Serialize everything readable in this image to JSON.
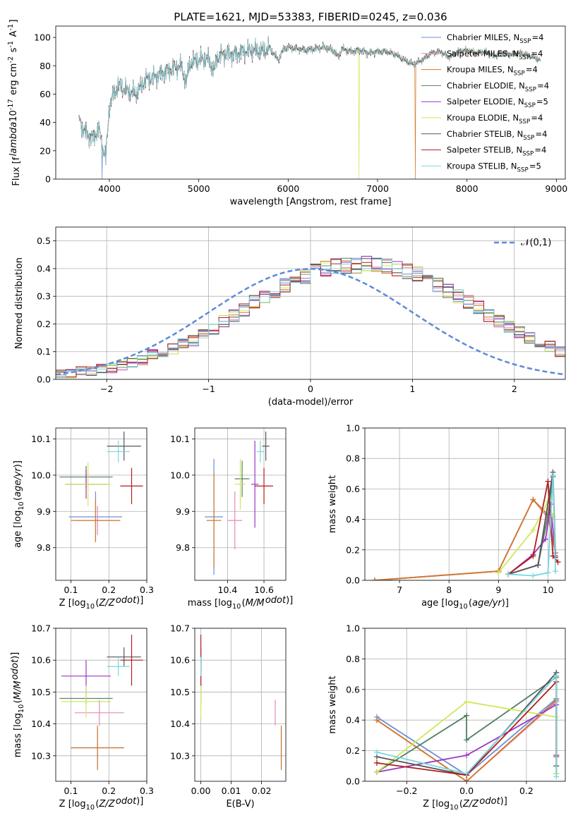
{
  "title": "PLATE=1621, MJD=53383, FIBERID=0245, z=0.036",
  "series": [
    {
      "name": "Chabrier MILES, N$_{SSP}$=4",
      "label": "Chabrier MILES",
      "nssp": "4",
      "color": "#6a8fd8"
    },
    {
      "name": "Salpeter MILES, N$_{SSP}$=4",
      "label": "Salpeter MILES",
      "nssp": "4",
      "color": "#e58ab8"
    },
    {
      "name": "Kroupa MILES, N$_{SSP}$=4",
      "label": "Kroupa MILES",
      "nssp": "4",
      "color": "#d2782a"
    },
    {
      "name": "Chabrier ELODIE, N$_{SSP}$=4",
      "label": "Chabrier ELODIE",
      "nssp": "4",
      "color": "#4f7f5f"
    },
    {
      "name": "Salpeter ELODIE, N$_{SSP}$=5",
      "label": "Salpeter ELODIE",
      "nssp": "5",
      "color": "#9b35c5"
    },
    {
      "name": "Kroupa ELODIE, N$_{SSP}$=4",
      "label": "Kroupa ELODIE",
      "nssp": "4",
      "color": "#cfe85a"
    },
    {
      "name": "Chabrier STELIB, N$_{SSP}$=4",
      "label": "Chabrier STELIB",
      "nssp": "4",
      "color": "#555555"
    },
    {
      "name": "Salpeter STELIB, N$_{SSP}$=4",
      "label": "Salpeter STELIB",
      "nssp": "4",
      "color": "#b51c1c"
    },
    {
      "name": "Kroupa STELIB, N$_{SSP}$=5",
      "label": "Kroupa STELIB",
      "nssp": "5",
      "color": "#79d6e0"
    }
  ],
  "chart_data": [
    {
      "id": "spectrum",
      "type": "line",
      "title": "PLATE=1621, MJD=53383, FIBERID=0245, z=0.036",
      "xlabel": "wavelength [Angstrom, rest frame]",
      "ylabel": "Flux [f$_\\lambda$10$^{-17}$ erg cm$^{-2}$ s$^{-1}$ A$^{-1}$]",
      "xlim": [
        3400,
        9100
      ],
      "ylim": [
        0,
        108
      ],
      "xticks": [
        4000,
        5000,
        6000,
        7000,
        8000,
        9000
      ],
      "yticks": [
        0,
        20,
        40,
        60,
        80,
        100
      ],
      "legend": "top-right",
      "spectrum": {
        "x": [
          3660,
          3700,
          3760,
          3820,
          3880,
          3920,
          3960,
          4000,
          4050,
          4100,
          4200,
          4300,
          4400,
          4500,
          4600,
          4700,
          4800,
          4860,
          4900,
          5000,
          5100,
          5175,
          5200,
          5300,
          5400,
          5500,
          5600,
          5700,
          5800,
          5890,
          5950,
          6000,
          6100,
          6200,
          6300,
          6400,
          6500,
          6563,
          6600,
          6700,
          6800,
          6900,
          7000,
          7100,
          7200,
          7300,
          7400,
          7500,
          7600,
          7700,
          7800,
          7900,
          8000,
          8100,
          8200,
          8300,
          8400,
          8500,
          8600,
          8700,
          8820
        ],
        "y": [
          43,
          36,
          31,
          29,
          36,
          24,
          15,
          52,
          60,
          66,
          62,
          60,
          70,
          72,
          75,
          78,
          80,
          68,
          82,
          84,
          85,
          76,
          86,
          89,
          88,
          90,
          91,
          90,
          92,
          84,
          92,
          93,
          92,
          91,
          92,
          93,
          91,
          86,
          92,
          90,
          91,
          89,
          90,
          90,
          88,
          84,
          81,
          84,
          89,
          90,
          86,
          90,
          91,
          89,
          90,
          87,
          89,
          88,
          89,
          87,
          84
        ]
      },
      "dropouts": [
        {
          "series": "Chabrier MILES, N$_{SSP}$=4",
          "x": 3920
        },
        {
          "series": "Kroupa ELODIE, N$_{SSP}$=4",
          "x": 6790
        },
        {
          "series": "Kroupa MILES, N$_{SSP}$=4",
          "x": 7420
        }
      ]
    },
    {
      "id": "residuals",
      "type": "bar",
      "xlabel": "(data-model)/error",
      "ylabel": "Normed distribution",
      "xlim": [
        -2.5,
        2.5
      ],
      "ylim": [
        0,
        0.55
      ],
      "xticks": [
        -2,
        -1,
        0,
        1,
        2
      ],
      "yticks": [
        0.0,
        0.1,
        0.2,
        0.3,
        0.4,
        0.5
      ],
      "legend_entry": "$\\mathcal{N}(0,1)$",
      "legend": "top-right",
      "bin_width": 0.1,
      "bin_start": -2.5,
      "base_density": [
        0.02,
        0.02,
        0.03,
        0.03,
        0.04,
        0.04,
        0.05,
        0.06,
        0.07,
        0.09,
        0.1,
        0.11,
        0.13,
        0.14,
        0.16,
        0.18,
        0.21,
        0.23,
        0.25,
        0.28,
        0.3,
        0.32,
        0.34,
        0.36,
        0.37,
        0.39,
        0.4,
        0.41,
        0.41,
        0.41,
        0.42,
        0.41,
        0.41,
        0.4,
        0.39,
        0.38,
        0.36,
        0.34,
        0.32,
        0.3,
        0.28,
        0.26,
        0.23,
        0.21,
        0.19,
        0.17,
        0.15,
        0.13,
        0.12,
        0.1
      ],
      "normal_curve": {
        "mean": 0,
        "sigma": 1
      }
    },
    {
      "id": "age-vs-Z",
      "type": "scatter",
      "xlabel": "Z [log$_{10}$($Z/Z_\\odot$)]",
      "ylabel": "age  [log$_{10}$($age/yr$)]",
      "xlim": [
        0.06,
        0.3
      ],
      "ylim": [
        9.71,
        10.13
      ],
      "xticks": [
        0.1,
        0.2,
        0.3
      ],
      "yticks": [
        9.8,
        9.9,
        10.0,
        10.1
      ],
      "points": [
        {
          "x": 0.165,
          "y": 9.885,
          "xerr": 0.07,
          "yerr": 0.07
        },
        {
          "x": 0.17,
          "y": 9.875,
          "xerr": 0.06,
          "yerr": 0.04
        },
        {
          "x": 0.165,
          "y": 9.875,
          "xerr": 0.065,
          "yerr": 0.06
        },
        {
          "x": 0.14,
          "y": 9.995,
          "xerr": 0.07,
          "yerr": 0.03
        },
        {
          "x": 0.14,
          "y": 9.975,
          "xerr": 0.055,
          "yerr": 0.04
        },
        {
          "x": 0.145,
          "y": 9.975,
          "xerr": 0.06,
          "yerr": 0.06
        },
        {
          "x": 0.24,
          "y": 10.08,
          "xerr": 0.045,
          "yerr": 0.04
        },
        {
          "x": 0.26,
          "y": 9.97,
          "xerr": 0.03,
          "yerr": 0.05
        },
        {
          "x": 0.225,
          "y": 10.065,
          "xerr": 0.03,
          "yerr": 0.03
        }
      ]
    },
    {
      "id": "age-vs-mass",
      "type": "scatter",
      "xlabel": "mass [log$_{10}$($M/M_\\odot$)]",
      "ylabel": "",
      "xlim": [
        10.22,
        10.72
      ],
      "ylim": [
        9.71,
        10.13
      ],
      "xticks": [
        10.4,
        10.6
      ],
      "yticks": [
        9.8,
        9.9,
        10.0,
        10.1
      ],
      "points": [
        {
          "x": 10.325,
          "y": 9.885,
          "xerr": 0.05,
          "yerr": 0.16
        },
        {
          "x": 10.44,
          "y": 9.875,
          "xerr": 0.04,
          "yerr": 0.08
        },
        {
          "x": 10.325,
          "y": 9.875,
          "xerr": 0.04,
          "yerr": 0.13
        },
        {
          "x": 10.48,
          "y": 9.99,
          "xerr": 0.04,
          "yerr": 0.05
        },
        {
          "x": 10.55,
          "y": 9.975,
          "xerr": 0.02,
          "yerr": 0.12
        },
        {
          "x": 10.47,
          "y": 9.975,
          "xerr": 0.03,
          "yerr": 0.07
        },
        {
          "x": 10.61,
          "y": 10.08,
          "xerr": 0.02,
          "yerr": 0.04
        },
        {
          "x": 10.6,
          "y": 9.97,
          "xerr": 0.05,
          "yerr": 0.05
        },
        {
          "x": 10.58,
          "y": 10.065,
          "xerr": 0.02,
          "yerr": 0.03
        }
      ]
    },
    {
      "id": "weight-vs-age",
      "type": "line",
      "xlabel": "age  [log$_{10}$($age/yr$)]",
      "ylabel": "mass weight",
      "xlim": [
        6.3,
        10.35
      ],
      "ylim": [
        0,
        1
      ],
      "xticks": [
        7,
        8,
        9,
        10
      ],
      "yticks": [
        0.0,
        0.2,
        0.4,
        0.6,
        0.8,
        1.0
      ],
      "lines": [
        {
          "x": [
            6.5,
            9.0,
            9.7,
            10.0,
            10.15
          ],
          "y": [
            0.0,
            0.06,
            0.53,
            0.41,
            0.18
          ]
        },
        {
          "x": [
            6.5,
            9.0,
            9.7,
            10.0,
            10.15
          ],
          "y": [
            0.0,
            0.06,
            0.53,
            0.41,
            0.18
          ]
        },
        {
          "x": [
            6.5,
            9.0,
            9.7,
            10.0,
            10.15
          ],
          "y": [
            0.0,
            0.06,
            0.53,
            0.43,
            0.18
          ]
        },
        {
          "x": [
            9.2,
            9.8,
            10.0,
            10.1
          ],
          "y": [
            0.04,
            0.1,
            0.43,
            0.68
          ]
        },
        {
          "x": [
            9.2,
            9.7,
            9.95,
            10.05,
            10.15
          ],
          "y": [
            0.04,
            0.17,
            0.27,
            0.5,
            0.16
          ]
        },
        {
          "x": [
            9.0,
            9.7,
            10.0,
            10.1
          ],
          "y": [
            0.05,
            0.33,
            0.52,
            0.42
          ]
        },
        {
          "x": [
            9.2,
            9.8,
            10.1,
            10.15
          ],
          "y": [
            0.04,
            0.1,
            0.71,
            0.15
          ]
        },
        {
          "x": [
            9.2,
            9.7,
            10.0,
            10.1,
            10.2
          ],
          "y": [
            0.04,
            0.16,
            0.65,
            0.16,
            0.12
          ]
        },
        {
          "x": [
            9.2,
            9.7,
            10.0,
            10.1,
            10.15
          ],
          "y": [
            0.04,
            0.03,
            0.05,
            0.69,
            0.06
          ]
        }
      ]
    },
    {
      "id": "mass-vs-Z",
      "type": "scatter",
      "xlabel": "Z [log$_{10}$($Z/Z_\\odot$)]",
      "ylabel": "mass [log$_{10}$($M/M_\\odot$)]",
      "xlim": [
        0.06,
        0.3
      ],
      "ylim": [
        10.22,
        10.7
      ],
      "xticks": [
        0.1,
        0.2,
        0.3
      ],
      "yticks": [
        10.3,
        10.4,
        10.5,
        10.6,
        10.7
      ],
      "points": [
        {
          "x": 0.17,
          "y": 10.325,
          "xerr": 0.07,
          "yerr": 0.06
        },
        {
          "x": 0.175,
          "y": 10.435,
          "xerr": 0.065,
          "yerr": 0.04
        },
        {
          "x": 0.17,
          "y": 10.325,
          "xerr": 0.07,
          "yerr": 0.07
        },
        {
          "x": 0.14,
          "y": 10.48,
          "xerr": 0.07,
          "yerr": 0.02
        },
        {
          "x": 0.14,
          "y": 10.55,
          "xerr": 0.065,
          "yerr": 0.05
        },
        {
          "x": 0.14,
          "y": 10.47,
          "xerr": 0.065,
          "yerr": 0.05
        },
        {
          "x": 0.24,
          "y": 10.61,
          "xerr": 0.045,
          "yerr": 0.03
        },
        {
          "x": 0.26,
          "y": 10.6,
          "xerr": 0.03,
          "yerr": 0.08
        },
        {
          "x": 0.225,
          "y": 10.58,
          "xerr": 0.03,
          "yerr": 0.03
        }
      ]
    },
    {
      "id": "mass-vs-ebv",
      "type": "scatter",
      "xlabel": "E(B-V)",
      "ylabel": "",
      "xlim": [
        -0.002,
        0.028
      ],
      "ylim": [
        10.22,
        10.7
      ],
      "xticks": [
        0.0,
        0.01,
        0.02
      ],
      "yticks": [
        10.3,
        10.4,
        10.5,
        10.6,
        10.7
      ],
      "points": [
        {
          "x": 0.0265,
          "y": 10.325,
          "xerr": 0,
          "yerr": 0.06
        },
        {
          "x": 0.0245,
          "y": 10.435,
          "xerr": 0,
          "yerr": 0.04
        },
        {
          "x": 0.0265,
          "y": 10.325,
          "xerr": 0,
          "yerr": 0.07
        },
        {
          "x": 0.0,
          "y": 10.48,
          "xerr": 0,
          "yerr": 0.02
        },
        {
          "x": 0.0,
          "y": 10.55,
          "xerr": 0,
          "yerr": 0.05
        },
        {
          "x": 0.0,
          "y": 10.47,
          "xerr": 0,
          "yerr": 0.05
        },
        {
          "x": 0.0,
          "y": 10.61,
          "xerr": 0,
          "yerr": 0.03
        },
        {
          "x": 0.0,
          "y": 10.6,
          "xerr": 0,
          "yerr": 0.08
        },
        {
          "x": 0.0,
          "y": 10.58,
          "xerr": 0,
          "yerr": 0.03
        }
      ]
    },
    {
      "id": "weight-vs-Z",
      "type": "line",
      "xlabel": "Z [log$_{10}$($Z/Z_\\odot$)]",
      "ylabel": "mass weight",
      "xlim": [
        -0.34,
        0.33
      ],
      "ylim": [
        0,
        1
      ],
      "xticks": [
        -0.2,
        0.0,
        0.2
      ],
      "yticks": [
        0.0,
        0.2,
        0.4,
        0.6,
        0.8,
        1.0
      ],
      "lines": [
        {
          "x": [
            -0.3,
            0.0,
            0.3,
            0.3
          ],
          "y": [
            0.42,
            0.04,
            0.54,
            0.05
          ]
        },
        {
          "x": [
            -0.3,
            0.0,
            0.3,
            0.3
          ],
          "y": [
            0.4,
            0.0,
            0.52,
            0.05
          ]
        },
        {
          "x": [
            -0.3,
            0.0,
            0.3,
            0.3
          ],
          "y": [
            0.4,
            0.0,
            0.53,
            0.05
          ]
        },
        {
          "x": [
            -0.3,
            0.0,
            0.0,
            0.3
          ],
          "y": [
            0.06,
            0.43,
            0.27,
            0.68
          ]
        },
        {
          "x": [
            -0.3,
            0.0,
            0.3,
            0.3
          ],
          "y": [
            0.06,
            0.17,
            0.5,
            0.16
          ]
        },
        {
          "x": [
            -0.3,
            0.0,
            0.3,
            0.3
          ],
          "y": [
            0.06,
            0.52,
            0.42,
            0.05
          ]
        },
        {
          "x": [
            -0.3,
            0.0,
            0.3,
            0.3
          ],
          "y": [
            0.16,
            0.04,
            0.71,
            0.1
          ]
        },
        {
          "x": [
            -0.3,
            0.0,
            0.3,
            0.3
          ],
          "y": [
            0.12,
            0.04,
            0.65,
            0.17
          ]
        },
        {
          "x": [
            -0.3,
            0.0,
            0.3,
            0.3
          ],
          "y": [
            0.19,
            0.05,
            0.69,
            0.03
          ]
        }
      ]
    }
  ]
}
